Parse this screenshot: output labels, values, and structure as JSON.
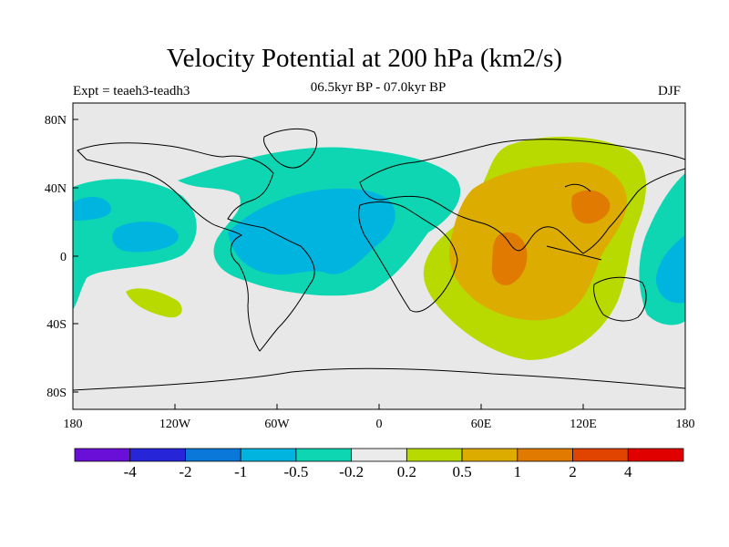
{
  "title": "Velocity Potential at 200 hPa (km2/s)",
  "subtitle": "06.5kyr BP - 07.0kyr BP",
  "left_label": "Expt = teaeh3-teadh3",
  "right_label": "DJF",
  "lat_ticks": [
    "80N",
    "40N",
    "0",
    "40S",
    "80S"
  ],
  "lon_ticks": [
    "180",
    "120W",
    "60W",
    "0",
    "60E",
    "120E",
    "180"
  ],
  "colorbar": {
    "colors": [
      "#6a0fd8",
      "#2626d8",
      "#0a78d8",
      "#00b4e0",
      "#0ed6b2",
      "#ebebeb",
      "#b8da00",
      "#dcac00",
      "#e07a00",
      "#e04400",
      "#e00000"
    ],
    "labels": [
      "-4",
      "-2",
      "-1",
      "-0.5",
      "-0.2",
      "0.2",
      "0.5",
      "1",
      "2",
      "4"
    ]
  },
  "field_colors": {
    "background": "#e8e8e8",
    "teal": "#0ed6b2",
    "cyan": "#00b4e0",
    "lime": "#b8da00",
    "amber": "#dcac00",
    "orange": "#e07a00"
  }
}
